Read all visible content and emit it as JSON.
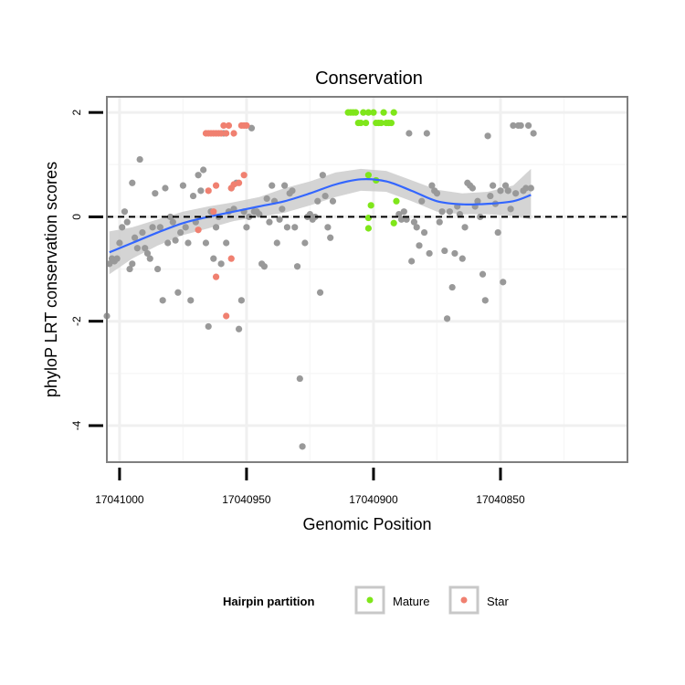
{
  "chart_data": {
    "type": "scatter",
    "title": "Conservation",
    "xlabel": "Genomic Position",
    "ylabel": "phyloP LRT conservation scores",
    "x_reversed": true,
    "xlim": [
      17041005,
      17040800
    ],
    "ylim": [
      -4.7,
      2.3
    ],
    "x_ticks": [
      17041000,
      17040950,
      17040900,
      17040850
    ],
    "x_tick_labels": [
      "17041000",
      "17040950",
      "17040900",
      "17040850"
    ],
    "y_ticks": [
      2,
      0,
      -2,
      -4
    ],
    "y_tick_labels": [
      "2",
      "0",
      "-2",
      "-4"
    ],
    "reference_line": {
      "y": 0,
      "style": "dashed"
    },
    "grid": true,
    "legend": {
      "title": "Hairpin partition",
      "position": "bottom",
      "entries": [
        {
          "label": "Mature",
          "color": "#7fe61a"
        },
        {
          "label": "Star",
          "color": "#f08070"
        }
      ]
    },
    "colors": {
      "other_points": "#999999",
      "mature": "#7fe61a",
      "star": "#f08070",
      "smooth": "#3366ff",
      "ribbon": "#cccccc"
    },
    "series": [
      {
        "name": "Mature",
        "points": [
          [
            17040910,
            2.0
          ],
          [
            17040909,
            2.0
          ],
          [
            17040908,
            2.0
          ],
          [
            17040907,
            2.0
          ],
          [
            17040906,
            1.8
          ],
          [
            17040905,
            1.8
          ],
          [
            17040904,
            2.0
          ],
          [
            17040903,
            1.8
          ],
          [
            17040902,
            2.0
          ],
          [
            17040900,
            2.0
          ],
          [
            17040899,
            1.8
          ],
          [
            17040898,
            1.8
          ],
          [
            17040897,
            1.8
          ],
          [
            17040896,
            2.0
          ],
          [
            17040895,
            1.8
          ],
          [
            17040894,
            1.8
          ],
          [
            17040893,
            1.8
          ],
          [
            17040892,
            2.0
          ],
          [
            17040902,
            0.8
          ],
          [
            17040899,
            0.7
          ],
          [
            17040901,
            0.22
          ],
          [
            17040902,
            -0.02
          ],
          [
            17040902,
            -0.22
          ],
          [
            17040891,
            0.3
          ],
          [
            17040892,
            -0.12
          ]
        ]
      },
      {
        "name": "Star",
        "points": [
          [
            17040966,
            1.6
          ],
          [
            17040965,
            1.6
          ],
          [
            17040964,
            1.6
          ],
          [
            17040963,
            1.6
          ],
          [
            17040962,
            1.6
          ],
          [
            17040961,
            1.6
          ],
          [
            17040960,
            1.6
          ],
          [
            17040959,
            1.75
          ],
          [
            17040958,
            1.6
          ],
          [
            17040957,
            1.75
          ],
          [
            17040955,
            1.6
          ],
          [
            17040952,
            1.75
          ],
          [
            17040951,
            1.75
          ],
          [
            17040950,
            1.75
          ],
          [
            17040969,
            -0.25
          ],
          [
            17040965,
            0.5
          ],
          [
            17040962,
            0.6
          ],
          [
            17040963,
            0.1
          ],
          [
            17040962,
            -1.15
          ],
          [
            17040958,
            -1.9
          ],
          [
            17040956,
            -0.8
          ],
          [
            17040956,
            0.55
          ],
          [
            17040955,
            0.62
          ],
          [
            17040953,
            0.65
          ],
          [
            17040951,
            0.8
          ]
        ]
      },
      {
        "points": [
          [
            17041005,
            -1.9
          ],
          [
            17041004,
            -0.9
          ],
          [
            17041003,
            -0.8
          ],
          [
            17041002,
            -0.85
          ],
          [
            17041001,
            -0.8
          ],
          [
            17041000,
            -0.5
          ],
          [
            17040999,
            -0.2
          ],
          [
            17040998,
            0.1
          ],
          [
            17040997,
            -0.1
          ],
          [
            17040996,
            -1.0
          ],
          [
            17040995,
            -0.9
          ],
          [
            17040995,
            0.65
          ],
          [
            17040994,
            -0.4
          ],
          [
            17040993,
            -0.6
          ],
          [
            17040992,
            1.1
          ],
          [
            17040991,
            -0.3
          ],
          [
            17040990,
            -0.6
          ],
          [
            17040989,
            -0.7
          ],
          [
            17040988,
            -0.8
          ],
          [
            17040987,
            -0.2
          ],
          [
            17040986,
            0.45
          ],
          [
            17040985,
            -1.0
          ],
          [
            17040984,
            -0.2
          ],
          [
            17040983,
            -1.6
          ],
          [
            17040982,
            0.55
          ],
          [
            17040981,
            -0.5
          ],
          [
            17040980,
            0.0
          ],
          [
            17040979,
            -0.1
          ],
          [
            17040978,
            -0.45
          ],
          [
            17040977,
            -1.45
          ],
          [
            17040976,
            -0.3
          ],
          [
            17040975,
            0.6
          ],
          [
            17040974,
            -0.2
          ],
          [
            17040973,
            -0.5
          ],
          [
            17040972,
            -1.6
          ],
          [
            17040971,
            0.4
          ],
          [
            17040970,
            -0.1
          ],
          [
            17040969,
            0.8
          ],
          [
            17040968,
            0.5
          ],
          [
            17040967,
            0.9
          ],
          [
            17040966,
            -0.5
          ],
          [
            17040965,
            -2.1
          ],
          [
            17040964,
            0.1
          ],
          [
            17040963,
            -0.8
          ],
          [
            17040962,
            -0.2
          ],
          [
            17040961,
            0.0
          ],
          [
            17040960,
            -0.9
          ],
          [
            17040959,
            1.6
          ],
          [
            17040958,
            -0.5
          ],
          [
            17040957,
            0.1
          ],
          [
            17040956,
            0.55
          ],
          [
            17040955,
            0.15
          ],
          [
            17040954,
            0.65
          ],
          [
            17040953,
            -2.15
          ],
          [
            17040952,
            -1.6
          ],
          [
            17040951,
            0.1
          ],
          [
            17040950,
            -0.2
          ],
          [
            17040949,
            0.0
          ],
          [
            17040948,
            1.7
          ],
          [
            17040947,
            0.1
          ],
          [
            17040946,
            0.1
          ],
          [
            17040945,
            0.05
          ],
          [
            17040944,
            -0.9
          ],
          [
            17040943,
            -0.95
          ],
          [
            17040942,
            0.35
          ],
          [
            17040941,
            -0.1
          ],
          [
            17040940,
            0.6
          ],
          [
            17040939,
            0.3
          ],
          [
            17040938,
            -0.5
          ],
          [
            17040937,
            -0.05
          ],
          [
            17040936,
            0.15
          ],
          [
            17040935,
            0.6
          ],
          [
            17040934,
            -0.2
          ],
          [
            17040933,
            0.45
          ],
          [
            17040932,
            0.5
          ],
          [
            17040931,
            -0.2
          ],
          [
            17040930,
            -0.95
          ],
          [
            17040929,
            -3.1
          ],
          [
            17040928,
            -4.4
          ],
          [
            17040927,
            -0.5
          ],
          [
            17040926,
            0.0
          ],
          [
            17040925,
            0.05
          ],
          [
            17040924,
            -0.05
          ],
          [
            17040923,
            0.0
          ],
          [
            17040922,
            0.3
          ],
          [
            17040921,
            -1.45
          ],
          [
            17040920,
            0.8
          ],
          [
            17040919,
            0.4
          ],
          [
            17040918,
            -0.2
          ],
          [
            17040917,
            -0.4
          ],
          [
            17040916,
            0.3
          ],
          [
            17040890,
            0.05
          ],
          [
            17040889,
            -0.05
          ],
          [
            17040888,
            0.1
          ],
          [
            17040887,
            -0.05
          ],
          [
            17040886,
            1.6
          ],
          [
            17040885,
            -0.85
          ],
          [
            17040884,
            -0.1
          ],
          [
            17040883,
            -0.2
          ],
          [
            17040882,
            -0.55
          ],
          [
            17040881,
            0.3
          ],
          [
            17040880,
            -0.3
          ],
          [
            17040879,
            1.6
          ],
          [
            17040878,
            -0.7
          ],
          [
            17040877,
            0.6
          ],
          [
            17040876,
            0.5
          ],
          [
            17040875,
            0.45
          ],
          [
            17040874,
            -0.1
          ],
          [
            17040873,
            0.1
          ],
          [
            17040872,
            -0.65
          ],
          [
            17040871,
            -1.95
          ],
          [
            17040870,
            0.1
          ],
          [
            17040869,
            -1.35
          ],
          [
            17040868,
            -0.7
          ],
          [
            17040867,
            0.2
          ],
          [
            17040866,
            0.05
          ],
          [
            17040865,
            -0.8
          ],
          [
            17040864,
            -0.2
          ],
          [
            17040863,
            0.65
          ],
          [
            17040862,
            0.6
          ],
          [
            17040861,
            0.55
          ],
          [
            17040860,
            0.2
          ],
          [
            17040859,
            0.3
          ],
          [
            17040858,
            0.0
          ],
          [
            17040857,
            -1.1
          ],
          [
            17040856,
            -1.6
          ],
          [
            17040855,
            1.55
          ],
          [
            17040854,
            0.4
          ],
          [
            17040853,
            0.6
          ],
          [
            17040852,
            0.25
          ],
          [
            17040851,
            -0.3
          ],
          [
            17040850,
            0.5
          ],
          [
            17040849,
            -1.25
          ],
          [
            17040848,
            0.6
          ],
          [
            17040847,
            0.5
          ],
          [
            17040846,
            0.15
          ],
          [
            17040845,
            1.75
          ],
          [
            17040844,
            0.45
          ],
          [
            17040843,
            1.75
          ],
          [
            17040842,
            1.75
          ],
          [
            17040841,
            0.5
          ],
          [
            17040840,
            0.55
          ],
          [
            17040839,
            1.75
          ],
          [
            17040838,
            0.55
          ],
          [
            17040837,
            1.6
          ]
        ]
      }
    ],
    "smooth_fit": {
      "x": [
        17041004,
        17040995,
        17040985,
        17040975,
        17040965,
        17040955,
        17040945,
        17040935,
        17040925,
        17040915,
        17040905,
        17040895,
        17040885,
        17040875,
        17040865,
        17040855,
        17040845,
        17040838
      ],
      "y": [
        -0.68,
        -0.5,
        -0.3,
        -0.12,
        0.0,
        0.1,
        0.2,
        0.3,
        0.45,
        0.62,
        0.72,
        0.68,
        0.5,
        0.3,
        0.24,
        0.25,
        0.3,
        0.42
      ],
      "upper": [
        -0.28,
        -0.2,
        -0.05,
        0.1,
        0.2,
        0.28,
        0.38,
        0.55,
        0.68,
        0.85,
        0.92,
        0.88,
        0.7,
        0.52,
        0.45,
        0.48,
        0.6,
        0.92
      ],
      "lower": [
        -1.1,
        -0.8,
        -0.55,
        -0.35,
        -0.22,
        -0.08,
        0.0,
        0.08,
        0.22,
        0.38,
        0.5,
        0.48,
        0.3,
        0.1,
        0.05,
        0.05,
        0.02,
        -0.05
      ]
    }
  }
}
